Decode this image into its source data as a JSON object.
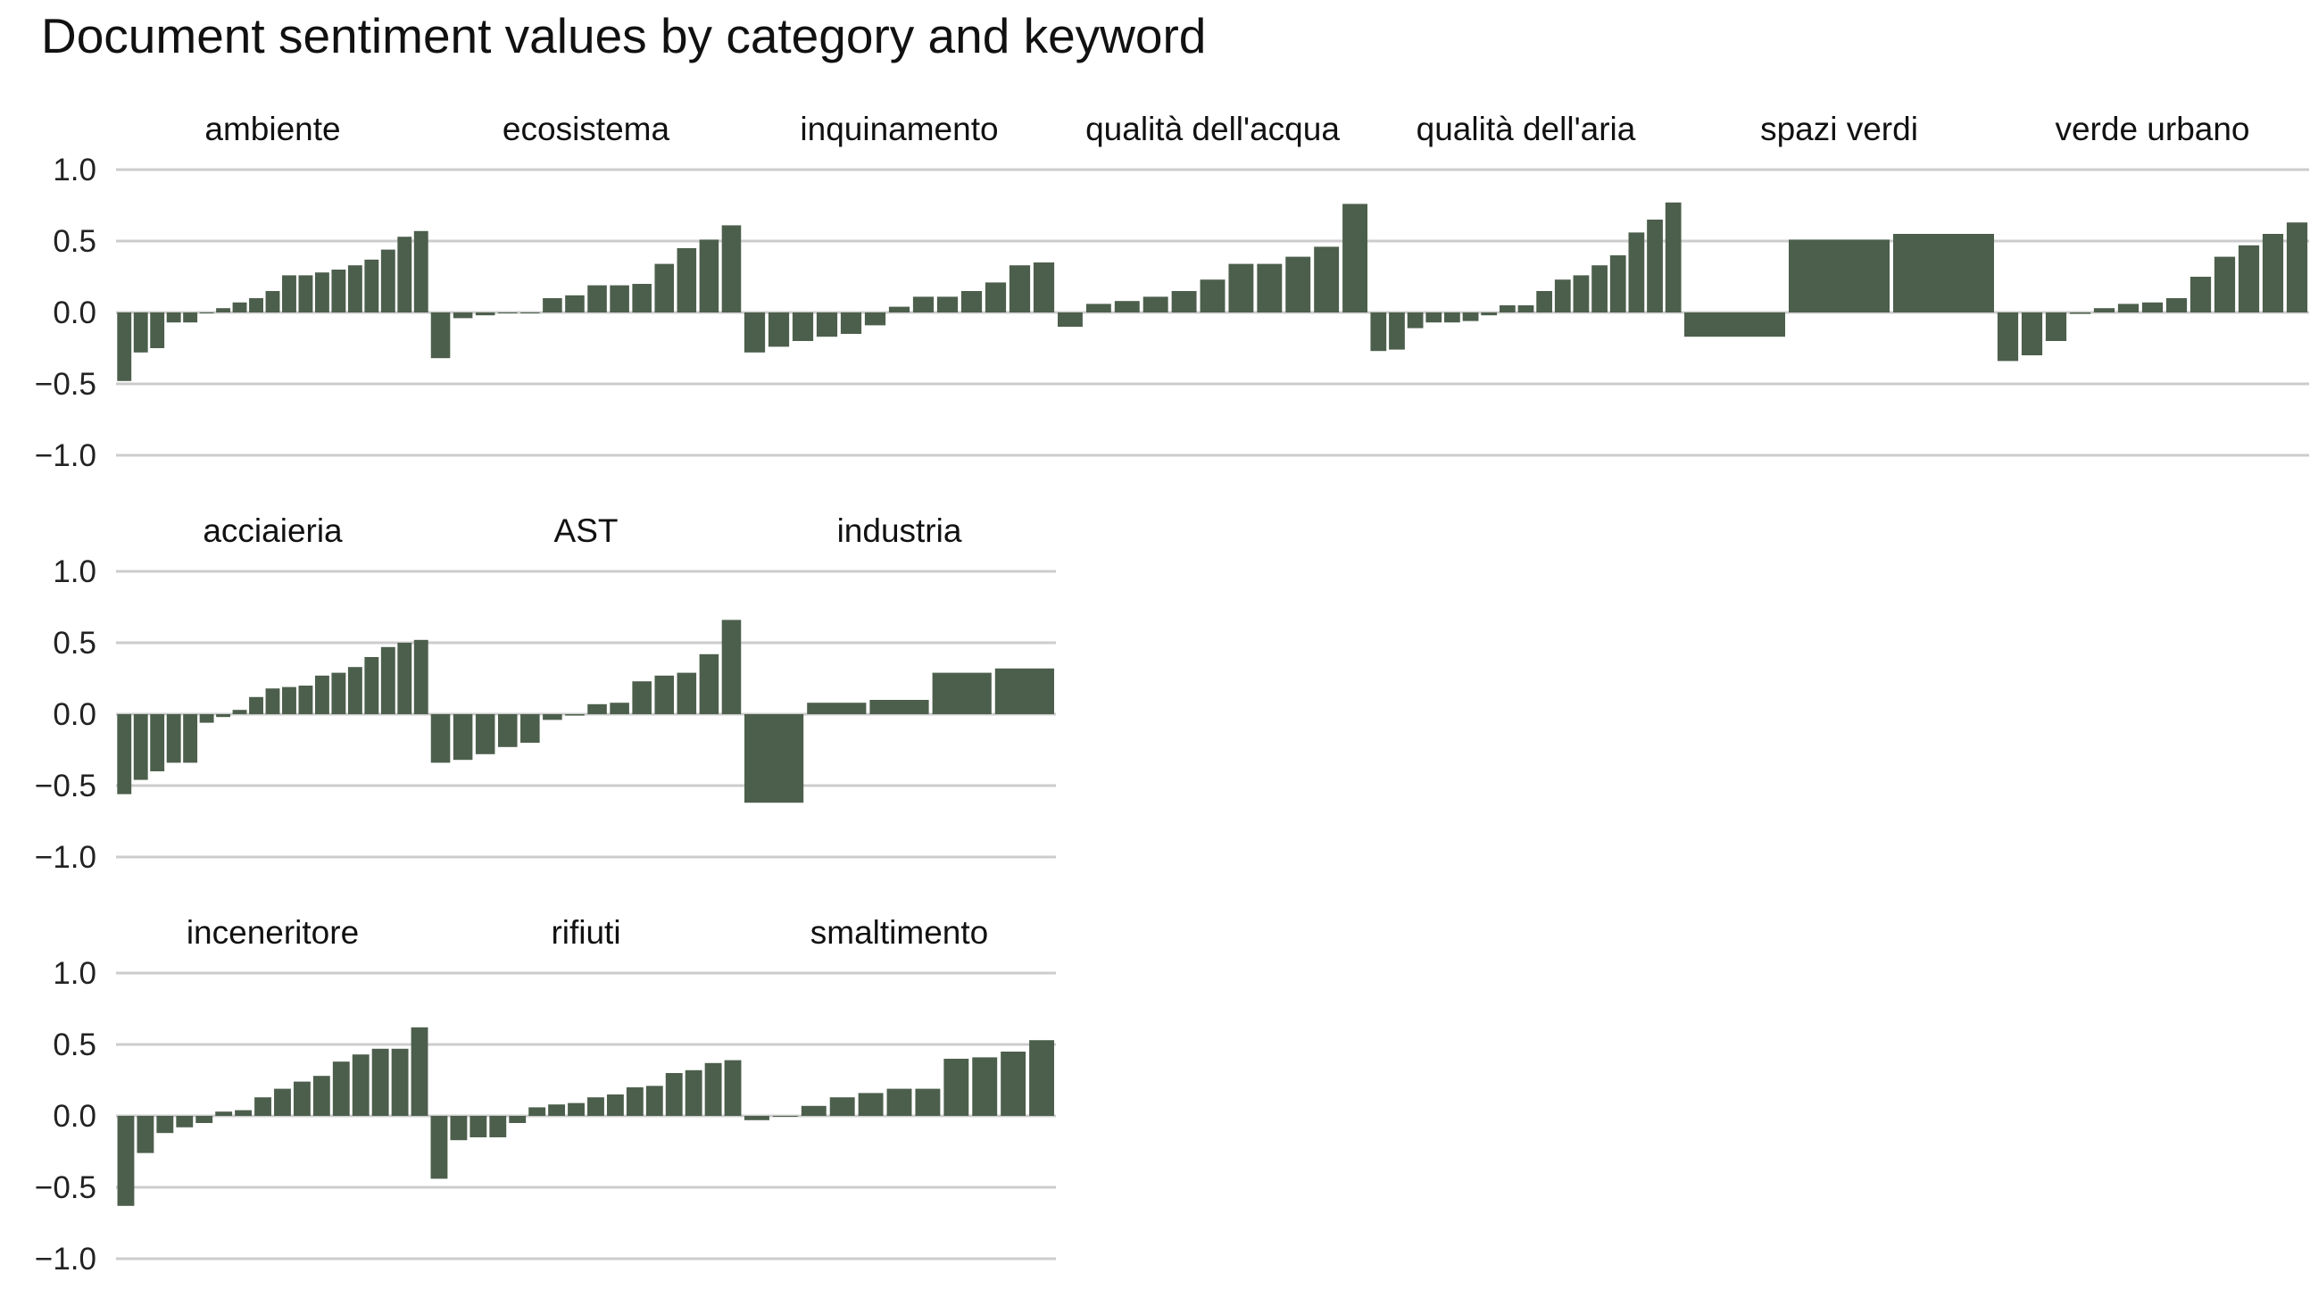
{
  "chart_data": {
    "type": "bar",
    "title": "Document sentiment values by category and keyword",
    "ylim": [
      -1.0,
      1.0
    ],
    "y_ticks": [
      "1.0",
      "0.5",
      "0.0",
      "−0.5",
      "−1.0"
    ],
    "bar_color": "#4c5f4c",
    "grid_color": "#cccccc",
    "grid": true,
    "rows": [
      {
        "panels": [
          {
            "keyword": "ambiente",
            "values": [
              -0.48,
              -0.28,
              -0.25,
              -0.07,
              -0.07,
              0.0,
              0.03,
              0.07,
              0.1,
              0.15,
              0.26,
              0.26,
              0.28,
              0.3,
              0.33,
              0.37,
              0.44,
              0.53,
              0.57
            ]
          },
          {
            "keyword": "ecosistema",
            "values": [
              -0.32,
              -0.04,
              -0.02,
              0.0,
              0.0,
              0.1,
              0.12,
              0.19,
              0.19,
              0.2,
              0.34,
              0.45,
              0.51,
              0.61
            ]
          },
          {
            "keyword": "inquinamento",
            "values": [
              -0.28,
              -0.24,
              -0.2,
              -0.17,
              -0.15,
              -0.09,
              0.04,
              0.11,
              0.11,
              0.15,
              0.21,
              0.33,
              0.35
            ]
          },
          {
            "keyword": "qualità dell'acqua",
            "values": [
              -0.1,
              0.06,
              0.08,
              0.11,
              0.15,
              0.23,
              0.34,
              0.34,
              0.39,
              0.46,
              0.76
            ]
          },
          {
            "keyword": "qualità dell'aria",
            "values": [
              -0.27,
              -0.26,
              -0.11,
              -0.07,
              -0.07,
              -0.06,
              -0.02,
              0.05,
              0.05,
              0.15,
              0.23,
              0.26,
              0.33,
              0.4,
              0.56,
              0.65,
              0.77
            ]
          },
          {
            "keyword": "spazi verdi",
            "values": [
              -0.17,
              0.51,
              0.55
            ]
          },
          {
            "keyword": "verde urbano",
            "values": [
              -0.34,
              -0.3,
              -0.2,
              -0.01,
              0.03,
              0.06,
              0.07,
              0.1,
              0.25,
              0.39,
              0.47,
              0.55,
              0.63
            ]
          }
        ]
      },
      {
        "panels": [
          {
            "keyword": "acciaieria",
            "values": [
              -0.56,
              -0.46,
              -0.4,
              -0.34,
              -0.34,
              -0.06,
              -0.02,
              0.03,
              0.12,
              0.18,
              0.19,
              0.2,
              0.27,
              0.29,
              0.33,
              0.4,
              0.47,
              0.5,
              0.52
            ]
          },
          {
            "keyword": "AST",
            "values": [
              -0.34,
              -0.32,
              -0.28,
              -0.23,
              -0.2,
              -0.04,
              -0.01,
              0.07,
              0.08,
              0.23,
              0.27,
              0.29,
              0.42,
              0.66
            ]
          },
          {
            "keyword": "industria",
            "values": [
              -0.62,
              0.08,
              0.1,
              0.29,
              0.32
            ]
          }
        ]
      },
      {
        "panels": [
          {
            "keyword": "inceneritore",
            "values": [
              -0.63,
              -0.26,
              -0.12,
              -0.08,
              -0.05,
              0.03,
              0.04,
              0.13,
              0.19,
              0.24,
              0.28,
              0.38,
              0.43,
              0.47,
              0.47,
              0.62
            ]
          },
          {
            "keyword": "rifiuti",
            "values": [
              -0.44,
              -0.17,
              -0.15,
              -0.15,
              -0.05,
              0.06,
              0.08,
              0.09,
              0.13,
              0.15,
              0.2,
              0.21,
              0.3,
              0.32,
              0.37,
              0.39
            ]
          },
          {
            "keyword": "smaltimento",
            "values": [
              -0.03,
              0.0,
              0.07,
              0.13,
              0.16,
              0.19,
              0.19,
              0.4,
              0.41,
              0.45,
              0.53
            ]
          }
        ]
      }
    ]
  }
}
